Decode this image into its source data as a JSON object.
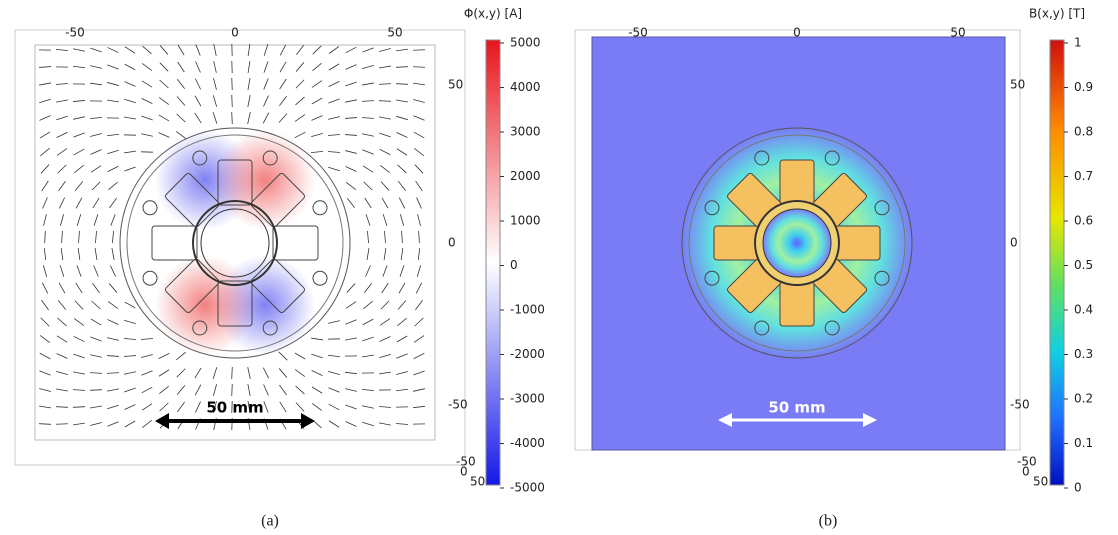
{
  "panels": [
    {
      "caption": "(a)",
      "colorbar": {
        "label": "Φ(x,y) [A]",
        "ticks": [
          5000,
          4000,
          3000,
          2000,
          1000,
          0,
          -1000,
          -2000,
          -3000,
          -4000,
          -5000
        ]
      },
      "top_axis": [
        "-50",
        "0",
        "50"
      ],
      "right_axis": [
        "50",
        "0",
        "-50"
      ],
      "corner_axis": [
        "-50",
        "0",
        "50"
      ],
      "scale_bar": "50 mm"
    },
    {
      "caption": "(b)",
      "colorbar": {
        "label": "B(x,y) [T]",
        "ticks": [
          1,
          0.9,
          0.8,
          0.7,
          0.6,
          0.5,
          0.4,
          0.3,
          0.2,
          0.1,
          0
        ]
      },
      "top_axis": [
        "-50",
        "0",
        "50"
      ],
      "right_axis": [
        "50",
        "0",
        "-50"
      ],
      "corner_axis": [
        "-50",
        "0",
        "50"
      ],
      "scale_bar": "50 mm"
    }
  ]
}
